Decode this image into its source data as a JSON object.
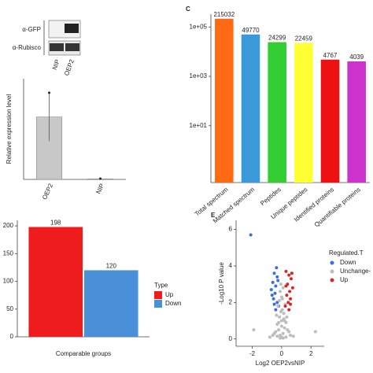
{
  "blot": {
    "rows": [
      "α-GFP",
      "α-Rubisco"
    ],
    "lanes": [
      "NIP",
      "OEP2"
    ]
  },
  "chart_data": [
    {
      "type": "bar",
      "ylabel": "Relative expression level",
      "categories": [
        "OEP2",
        "NIP"
      ],
      "values": [
        93,
        0.8
      ],
      "errors": [
        36,
        0.3
      ],
      "color": "#c8c8c8",
      "ylim": [
        0,
        150
      ]
    },
    {
      "type": "bar",
      "xlabel": "Comparable groups",
      "legend_title": "Type",
      "categories": [
        null
      ],
      "series": [
        {
          "name": "Up",
          "color": "#ee1c1c",
          "values": [
            198
          ]
        },
        {
          "name": "Down",
          "color": "#4a90d9",
          "values": [
            120
          ]
        }
      ],
      "ylim": [
        0,
        210
      ],
      "yticks": [
        0,
        50,
        100,
        150,
        200
      ]
    },
    {
      "type": "bar",
      "panel_label": "C",
      "log_scale": true,
      "categories": [
        "Total spectrum",
        "Matched spectrum",
        "Peptides",
        "Unique peptides",
        "Identified proteins",
        "Quantifiable proteins"
      ],
      "values": [
        215032,
        49770,
        24299,
        22459,
        4767,
        4039
      ],
      "colors": [
        "#ff6a13",
        "#3a9ad9",
        "#33cc33",
        "#ffff33",
        "#ee1111",
        "#cc33cc"
      ],
      "ylim": [
        0.05,
        330000
      ],
      "yticks": [
        {
          "value": 10,
          "label": "1e+01"
        },
        {
          "value": 1000,
          "label": "1e+03"
        },
        {
          "value": 100000,
          "label": "1e+05"
        }
      ]
    },
    {
      "type": "scatter",
      "panel_label": "E",
      "xlabel": "Log2 OEP2vsNIP",
      "ylabel": "-Log10 P value",
      "legend_title": "Regulated.T",
      "xlim": [
        -3.1,
        2.9
      ],
      "ylim": [
        -0.4,
        6.5
      ],
      "xticks": [
        -2,
        0,
        2
      ],
      "yticks": [
        0,
        2,
        4,
        6
      ],
      "series": [
        {
          "name": "Down",
          "color": "#3a6fd8",
          "x": [
            -2.1,
            -0.35,
            -0.5,
            -0.3,
            -0.6,
            -0.4,
            -0.7,
            -0.25,
            -0.45,
            -0.55,
            -0.3,
            -0.65,
            -0.2,
            -0.4,
            -0.5
          ],
          "values": [
            5.7,
            3.9,
            3.6,
            3.4,
            3.1,
            2.9,
            2.7,
            3.2,
            2.5,
            2.2,
            2.0,
            2.4,
            1.8,
            1.6,
            1.9
          ]
        },
        {
          "name": "Unchange-",
          "color": "#bdbdbd",
          "x": [
            -0.1,
            0.1,
            -0.2,
            0.2,
            0,
            -0.3,
            0.3,
            -0.15,
            0.15,
            -0.05,
            0.05,
            -0.4,
            0.4,
            -0.25,
            0.25,
            0,
            -0.1,
            0.1,
            -0.35,
            0.35,
            -0.2,
            0.2,
            -0.5,
            0.5,
            -0.6,
            0.6,
            -0.05,
            0.05,
            -0.15,
            0.15,
            0,
            -0.8,
            0.8,
            2.3,
            -1.9,
            -0.3,
            0.3,
            0.1,
            -0.1,
            0
          ],
          "values": [
            0.2,
            0.3,
            0.5,
            0.6,
            0.1,
            0.8,
            0.9,
            1.2,
            1.1,
            1.5,
            1.6,
            0.4,
            0.5,
            1.8,
            1.9,
            2.3,
            2.6,
            2.8,
            1.3,
            1.2,
            0.9,
            1.0,
            0.3,
            0.4,
            0.2,
            0.2,
            3.0,
            2.2,
            2.1,
            1.4,
            0.7,
            0.1,
            0.15,
            0.4,
            0.5,
            0.15,
            0.1,
            0.05,
            0.05,
            1.0
          ]
        },
        {
          "name": "Up",
          "color": "#d62728",
          "x": [
            0.3,
            0.5,
            0.65,
            0.4,
            0.75,
            0.55,
            0.35,
            0.6,
            0.45,
            0.25,
            0.7,
            0.5,
            0.3,
            0.6
          ],
          "values": [
            3.7,
            3.5,
            3.3,
            3.0,
            2.8,
            2.6,
            2.4,
            2.2,
            2.0,
            1.8,
            3.6,
            1.6,
            2.9,
            1.9
          ]
        }
      ]
    }
  ]
}
